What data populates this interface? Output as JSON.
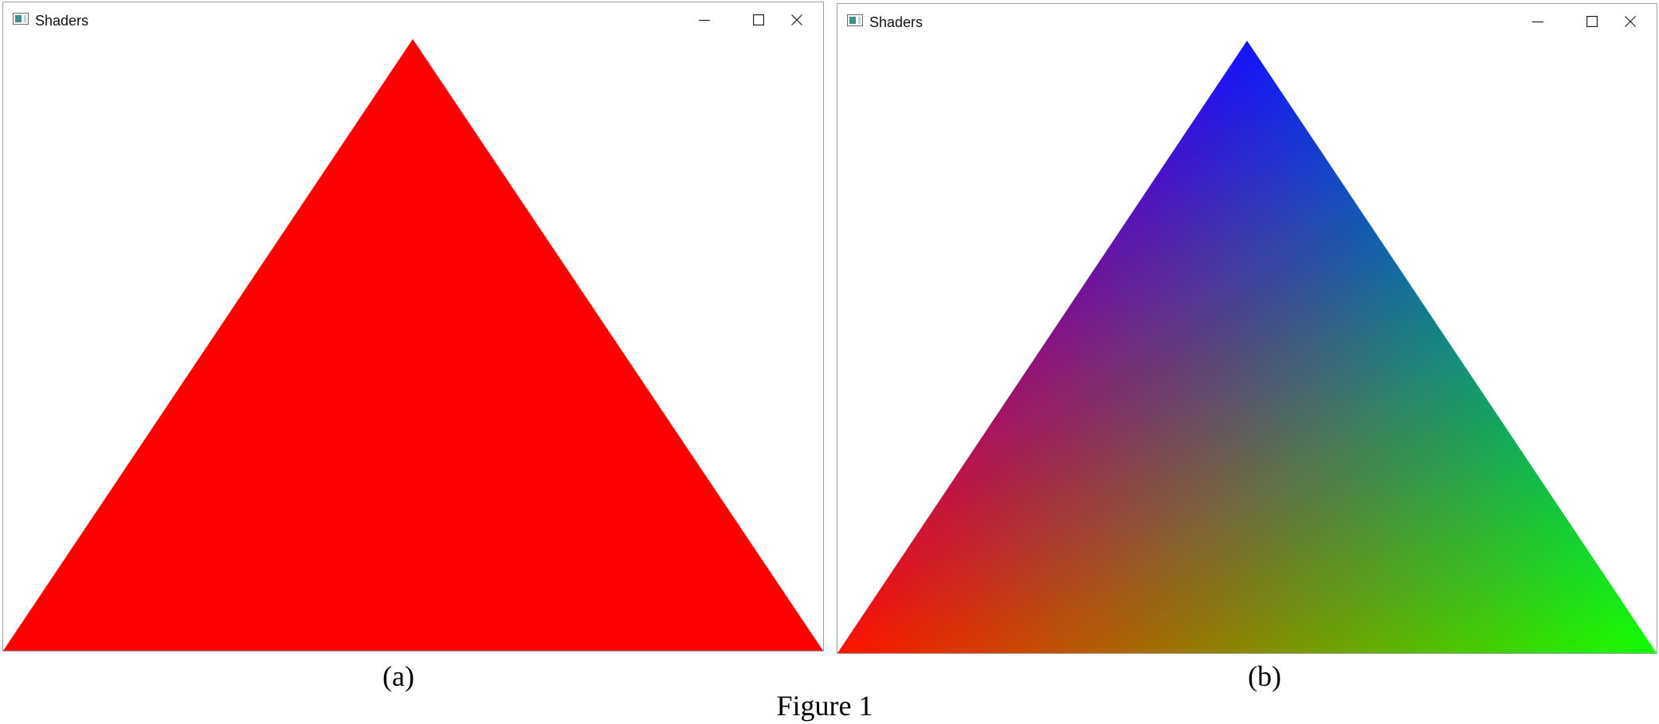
{
  "windows": [
    {
      "id": "a",
      "title": "Shaders",
      "shading": "flat",
      "triangle_color": "#ff0000",
      "caption": "(a)"
    },
    {
      "id": "b",
      "title": "Shaders",
      "shading": "interpolated",
      "vertex_colors": {
        "top": "#0000ff",
        "bottom_left": "#ff0000",
        "bottom_right": "#00ff00"
      },
      "caption": "(b)"
    }
  ],
  "figure_caption": "Figure 1",
  "icons": {
    "app": "app-window-icon",
    "minimize": "minimize-icon",
    "maximize": "maximize-icon",
    "close": "close-icon"
  }
}
